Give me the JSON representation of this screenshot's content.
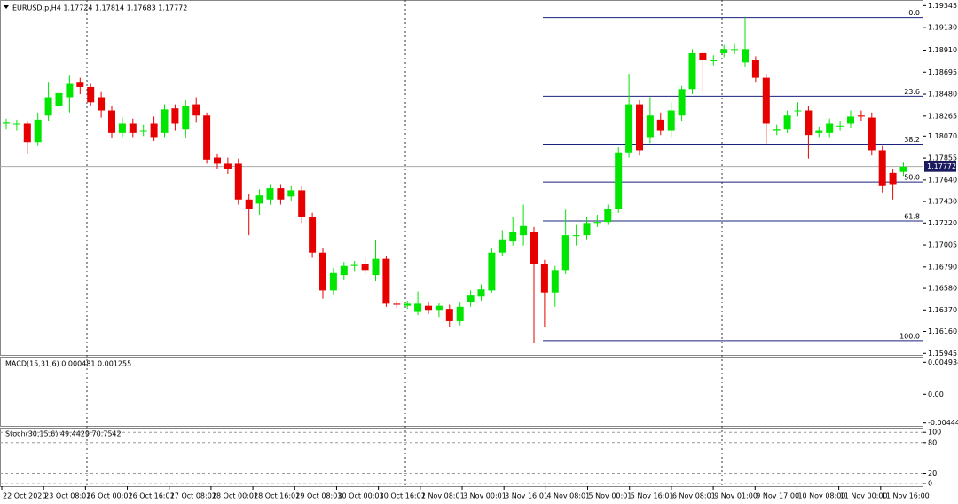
{
  "chart_data": {
    "type": "candlestick",
    "title": "EURUSD.p,H4  1.17724 1.17814 1.17683 1.17772",
    "up_color": "#00e600",
    "down_color": "#e60000",
    "open": [
      1.1819,
      1.1819,
      1.1819,
      1.1801,
      1.1827,
      1.1836,
      1.1845,
      1.186,
      1.1855,
      1.1845,
      1.1832,
      1.181,
      1.1819,
      1.1812,
      1.1819,
      1.181,
      1.1834,
      1.1814,
      1.1838,
      1.1827,
      1.1786,
      1.178,
      1.178,
      1.1745,
      1.1741,
      1.1745,
      1.1756,
      1.1748,
      1.1754,
      1.1728,
      1.1693,
      1.1656,
      1.1671,
      1.168,
      1.1682,
      1.1671,
      1.1687,
      1.1643,
      1.1641,
      1.1635,
      1.1641,
      1.1637,
      1.1638,
      1.1626,
      1.1645,
      1.165,
      1.1656,
      1.1693,
      1.1704,
      1.171,
      1.1713,
      1.1682,
      1.1654,
      1.1676,
      1.171,
      1.171,
      1.1722,
      1.1723,
      1.1736,
      1.1791,
      1.1838,
      1.1806,
      1.1823,
      1.1812,
      1.1827,
      1.1853,
      1.1888,
      1.1881,
      1.1888,
      1.1892,
      1.1879,
      1.1881,
      1.1864,
      1.1812,
      1.1814,
      1.1832,
      1.1832,
      1.181,
      1.181,
      1.1817,
      1.1819,
      1.1827,
      1.1825,
      1.1793,
      1.1771,
      1.1772
    ],
    "high": [
      1.1824,
      1.1823,
      1.1822,
      1.183,
      1.186,
      1.1862,
      1.1866,
      1.1864,
      1.1858,
      1.185,
      1.1836,
      1.1825,
      1.1824,
      1.1818,
      1.1826,
      1.1838,
      1.1838,
      1.1842,
      1.1845,
      1.183,
      1.179,
      1.1786,
      1.1785,
      1.175,
      1.1755,
      1.176,
      1.176,
      1.1758,
      1.1758,
      1.1732,
      1.1698,
      1.1678,
      1.1684,
      1.1685,
      1.1688,
      1.1705,
      1.169,
      1.1646,
      1.1646,
      1.1655,
      1.1645,
      1.1644,
      1.1642,
      1.1645,
      1.1656,
      1.1662,
      1.1697,
      1.1715,
      1.1728,
      1.174,
      1.1718,
      1.1686,
      1.168,
      1.1735,
      1.172,
      1.1728,
      1.173,
      1.174,
      1.1796,
      1.1868,
      1.1842,
      1.1845,
      1.183,
      1.184,
      1.1856,
      1.1892,
      1.189,
      1.1886,
      1.1896,
      1.1897,
      1.1923,
      1.1885,
      1.1868,
      1.1818,
      1.1832,
      1.184,
      1.1836,
      1.1816,
      1.1824,
      1.1822,
      1.1832,
      1.1832,
      1.183,
      1.1798,
      1.1775,
      1.1781
    ],
    "low": [
      1.1814,
      1.1812,
      1.179,
      1.1798,
      1.1822,
      1.1826,
      1.183,
      1.1848,
      1.1836,
      1.1825,
      1.1805,
      1.1806,
      1.1806,
      1.1807,
      1.1802,
      1.1806,
      1.1812,
      1.1805,
      1.182,
      1.178,
      1.1775,
      1.177,
      1.174,
      1.171,
      1.173,
      1.174,
      1.174,
      1.1744,
      1.1722,
      1.1688,
      1.1648,
      1.1652,
      1.1666,
      1.1675,
      1.1672,
      1.1665,
      1.164,
      1.1639,
      1.1638,
      1.1632,
      1.1633,
      1.163,
      1.162,
      1.1622,
      1.164,
      1.1646,
      1.1654,
      1.169,
      1.17,
      1.17,
      1.1605,
      1.162,
      1.164,
      1.1672,
      1.17,
      1.1706,
      1.1718,
      1.172,
      1.1732,
      1.1786,
      1.1788,
      1.18,
      1.1808,
      1.1806,
      1.1822,
      1.1848,
      1.185,
      1.1876,
      1.1884,
      1.1887,
      1.1875,
      1.186,
      1.18,
      1.1808,
      1.181,
      1.1826,
      1.1785,
      1.1806,
      1.1806,
      1.1812,
      1.1815,
      1.1822,
      1.1788,
      1.1752,
      1.1745,
      1.1768
    ],
    "close": [
      1.182,
      1.1819,
      1.1801,
      1.1823,
      1.1845,
      1.1849,
      1.1858,
      1.1855,
      1.184,
      1.1832,
      1.181,
      1.1819,
      1.181,
      1.1812,
      1.1806,
      1.1833,
      1.1819,
      1.1836,
      1.1827,
      1.1784,
      1.178,
      1.1775,
      1.1745,
      1.1736,
      1.1749,
      1.1756,
      1.1745,
      1.1754,
      1.1728,
      1.1693,
      1.1656,
      1.1673,
      1.168,
      1.1681,
      1.1676,
      1.1687,
      1.1643,
      1.1642,
      1.1643,
      1.1643,
      1.1637,
      1.1641,
      1.1626,
      1.164,
      1.1651,
      1.1657,
      1.1693,
      1.1706,
      1.1713,
      1.1719,
      1.1682,
      1.1654,
      1.1676,
      1.171,
      1.171,
      1.1722,
      1.1723,
      1.1736,
      1.1791,
      1.1838,
      1.1793,
      1.1827,
      1.1812,
      1.1832,
      1.1853,
      1.1888,
      1.1881,
      1.1881,
      1.1892,
      1.1892,
      1.1892,
      1.1864,
      1.1819,
      1.1814,
      1.1827,
      1.1832,
      1.1808,
      1.1812,
      1.1819,
      1.1817,
      1.1826,
      1.1826,
      1.1793,
      1.1758,
      1.176,
      1.1777
    ],
    "ylim": [
      1.1593,
      1.194
    ],
    "yticks": [
      1.19345,
      {
        "value": 1.1913,
        "label": "1.19130"
      },
      {
        "value": 1.1891,
        "label": "1.18910"
      },
      1.18695,
      {
        "value": 1.1848,
        "label": "1.18480"
      },
      1.18265,
      {
        "value": 1.1807,
        "label": "1.18070"
      },
      1.17855,
      {
        "value": 1.1764,
        "label": "1.17640"
      },
      {
        "value": 1.1743,
        "label": "1.17430"
      },
      {
        "value": 1.1722,
        "label": "1.17220"
      },
      1.17005,
      {
        "value": 1.1679,
        "label": "1.16790"
      },
      {
        "value": 1.1658,
        "label": "1.16580"
      },
      {
        "value": 1.1637,
        "label": "1.16370"
      },
      {
        "value": 1.1616,
        "label": "1.16160"
      },
      1.15945
    ],
    "current_price": 1.17772,
    "fibonacci": {
      "color": "#1a237e",
      "levels": [
        {
          "label": "0.0",
          "price": 1.1923
        },
        {
          "label": "23.6",
          "price": 1.1846
        },
        {
          "label": "38.2",
          "price": 1.1799
        },
        {
          "label": "50.0",
          "price": 1.1762
        },
        {
          "label": "61.8",
          "price": 1.1724
        },
        {
          "label": "100.0",
          "price": 1.1607
        }
      ]
    },
    "time_labels": [
      "22 Oct 2020",
      "23 Oct 08:01",
      "26 Oct 00:01",
      "26 Oct 16:01",
      "27 Oct 08:01",
      "28 Oct 00:01",
      "28 Oct 16:01",
      "29 Oct 08:01",
      "30 Oct 00:01",
      "30 Oct 16:01",
      "2 Nov 08:01",
      "3 Nov 00:01",
      "3 Nov 16:01",
      "4 Nov 08:01",
      "5 Nov 00:01",
      "5 Nov 16:01",
      "6 Nov 08:01",
      "9 Nov 01:00",
      "9 Nov 17:00",
      "10 Nov 08:00",
      "11 Nov 00:00",
      "11 Nov 16:00"
    ],
    "macd": {
      "label": "MACD(15,31,6) 0.000481 0.001255",
      "ylim": [
        -0.0049,
        0.0058
      ],
      "yticks": [
        0.004934,
        {
          "value": 0,
          "label": "0.00"
        },
        -0.004448
      ]
    },
    "stoch": {
      "label": "Stoch(30,15,6) 49.4429 70.7542",
      "ylim": [
        -5,
        109
      ],
      "yticks": [
        100,
        80,
        20,
        0
      ]
    }
  }
}
